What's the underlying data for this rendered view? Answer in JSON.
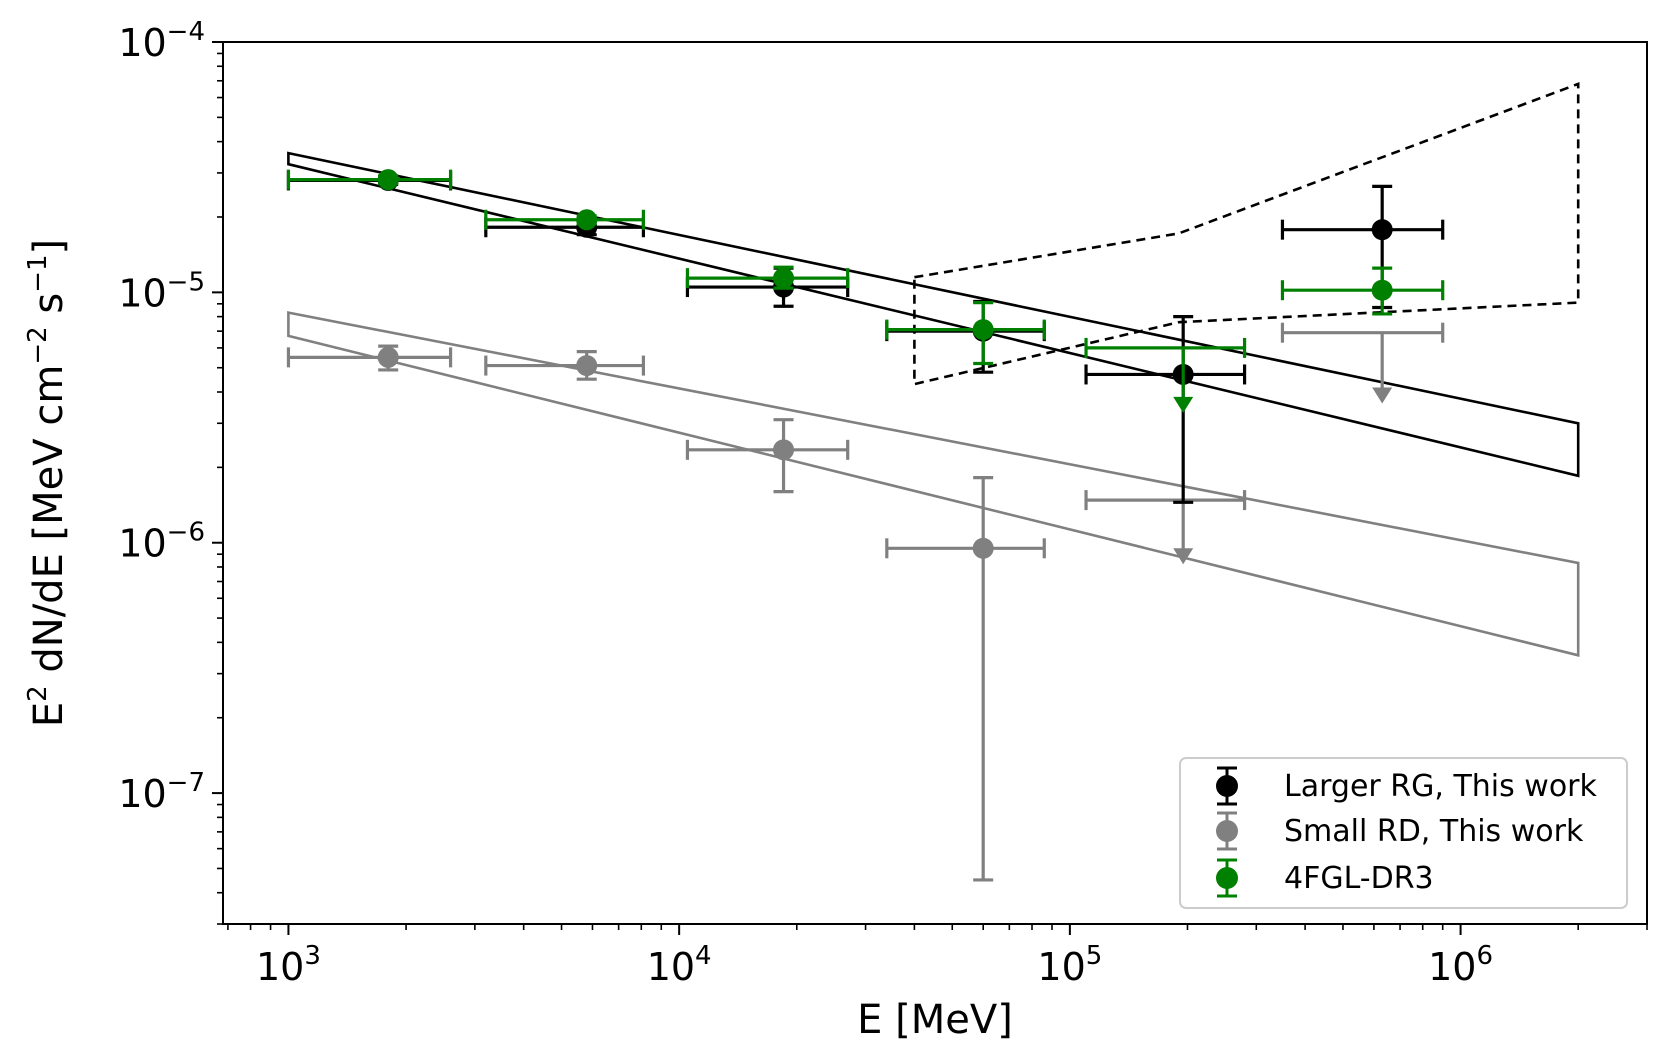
{
  "chart_data": {
    "type": "scatter",
    "title": "",
    "xlabel": "E [MeV]",
    "ylabel_parts": {
      "base": "E",
      "sup1": "2",
      "mid1": " dN/dE [MeV cm",
      "sup2": "−2",
      "mid2": " s",
      "sup3": "−1",
      "end": "]"
    },
    "xscale": "log",
    "yscale": "log",
    "xlim": [
      680,
      3000000
    ],
    "ylim": [
      3e-08,
      0.0001
    ],
    "x_ticks": [
      {
        "value": 1000,
        "base": "10",
        "exp": "3"
      },
      {
        "value": 10000,
        "base": "10",
        "exp": "4"
      },
      {
        "value": 100000,
        "base": "10",
        "exp": "5"
      },
      {
        "value": 1000000,
        "base": "10",
        "exp": "6"
      }
    ],
    "y_ticks": [
      {
        "value": 1e-07,
        "base": "10",
        "exp": "−7"
      },
      {
        "value": 1e-06,
        "base": "10",
        "exp": "−6"
      },
      {
        "value": 1e-05,
        "base": "10",
        "exp": "−5"
      },
      {
        "value": 0.0001,
        "base": "10",
        "exp": "−4"
      }
    ],
    "legend_position": "lower-right",
    "colors": {
      "larger": "#000000",
      "small": "#808080",
      "fgl": "#008000"
    },
    "series": [
      {
        "name": "Larger RG, This work",
        "color": "#000000",
        "points": [
          {
            "x": 1800,
            "xlo": 1000,
            "xhi": 2600,
            "y": 2.8e-05,
            "ylo": 2.7e-05,
            "yhi": 2.9e-05
          },
          {
            "x": 5800,
            "xlo": 3200,
            "xhi": 8100,
            "y": 1.82e-05,
            "ylo": 1.7e-05,
            "yhi": 1.92e-05
          },
          {
            "x": 18500,
            "xlo": 10500,
            "xhi": 27000,
            "y": 1.05e-05,
            "ylo": 8.8e-06,
            "yhi": 1.25e-05
          },
          {
            "x": 60000,
            "xlo": 34000,
            "xhi": 86000,
            "y": 7e-06,
            "ylo": 4.8e-06,
            "yhi": 9.2e-06
          },
          {
            "x": 195000,
            "xlo": 110000,
            "xhi": 280000,
            "y": 4.7e-06,
            "ylo": 1.45e-06,
            "yhi": 8e-06
          },
          {
            "x": 630000,
            "xlo": 350000,
            "xhi": 900000,
            "y": 1.78e-05,
            "ylo": 8.7e-06,
            "yhi": 2.65e-05
          }
        ]
      },
      {
        "name": "Small RD, This work",
        "color": "#808080",
        "points": [
          {
            "x": 1800,
            "xlo": 1000,
            "xhi": 2600,
            "y": 5.5e-06,
            "ylo": 4.9e-06,
            "yhi": 6.1e-06
          },
          {
            "x": 5800,
            "xlo": 3200,
            "xhi": 8100,
            "y": 5.1e-06,
            "ylo": 4.5e-06,
            "yhi": 5.8e-06
          },
          {
            "x": 18500,
            "xlo": 10500,
            "xhi": 27000,
            "y": 2.35e-06,
            "ylo": 1.6e-06,
            "yhi": 3.1e-06
          },
          {
            "x": 60000,
            "xlo": 34000,
            "xhi": 86000,
            "y": 9.5e-07,
            "ylo": 4.5e-08,
            "yhi": 1.82e-06
          },
          {
            "x": 195000,
            "xlo": 110000,
            "xhi": 280000,
            "y": 1.48e-06,
            "upper_limit": true,
            "arrow_to": 8.2e-07
          },
          {
            "x": 630000,
            "xlo": 350000,
            "xhi": 900000,
            "y": 6.9e-06,
            "upper_limit": true,
            "arrow_to": 3.6e-06
          }
        ]
      },
      {
        "name": "4FGL-DR3",
        "color": "#008000",
        "points": [
          {
            "x": 1800,
            "xlo": 1000,
            "xhi": 2600,
            "y": 2.82e-05,
            "ylo": 2.72e-05,
            "yhi": 2.92e-05
          },
          {
            "x": 5800,
            "xlo": 3200,
            "xhi": 8100,
            "y": 1.95e-05,
            "ylo": 1.88e-05,
            "yhi": 2.02e-05
          },
          {
            "x": 18500,
            "xlo": 10500,
            "xhi": 27000,
            "y": 1.14e-05,
            "ylo": 1.04e-05,
            "yhi": 1.26e-05
          },
          {
            "x": 60000,
            "xlo": 34000,
            "xhi": 86000,
            "y": 7.1e-06,
            "ylo": 5.2e-06,
            "yhi": 9.1e-06
          },
          {
            "x": 195000,
            "xlo": 110000,
            "xhi": 280000,
            "y": 6e-06,
            "upper_limit": true,
            "arrow_to": 3.3e-06
          },
          {
            "x": 630000,
            "xlo": 350000,
            "xhi": 900000,
            "y": 1.02e-05,
            "ylo": 8.2e-06,
            "yhi": 1.25e-05
          }
        ]
      }
    ],
    "bands": [
      {
        "name": "larger-band",
        "color": "#000000",
        "dashed": false,
        "upper": [
          [
            1000,
            3.6e-05
          ],
          [
            2000000,
            3e-06
          ]
        ],
        "lower": [
          [
            1000,
            3.25e-05
          ],
          [
            2000000,
            1.85e-06
          ]
        ]
      },
      {
        "name": "small-band",
        "color": "#808080",
        "dashed": false,
        "upper": [
          [
            1000,
            8.3e-06
          ],
          [
            2000000,
            8.3e-07
          ]
        ],
        "lower": [
          [
            1000,
            6.7e-06
          ],
          [
            2000000,
            3.55e-07
          ]
        ]
      },
      {
        "name": "dashed-band",
        "color": "#000000",
        "dashed": true,
        "upper": [
          [
            40000,
            1.15e-05
          ],
          [
            190000,
            1.72e-05
          ],
          [
            2000000,
            6.8e-05
          ]
        ],
        "lower": [
          [
            40000,
            4.3e-06
          ],
          [
            190000,
            7.6e-06
          ],
          [
            2000000,
            9.1e-06
          ]
        ]
      }
    ]
  }
}
